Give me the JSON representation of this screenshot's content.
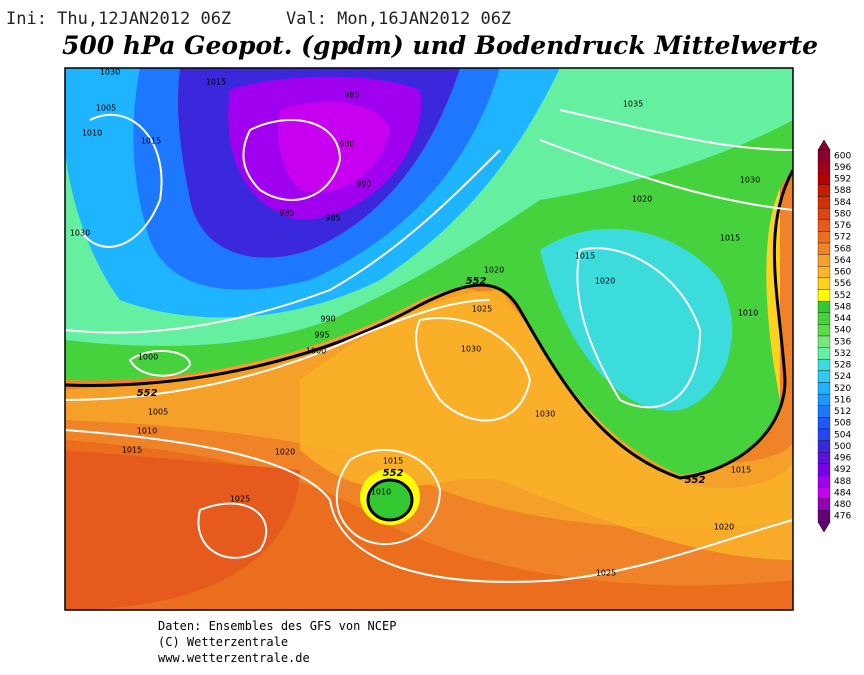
{
  "header": {
    "init": "Ini: Thu,12JAN2012 06Z",
    "valid": "Val: Mon,16JAN2012 06Z",
    "title": "500 hPa Geopot. (gpdm) und Bodendruck Mittelwerte"
  },
  "colorbar": {
    "levels": [
      600,
      596,
      592,
      588,
      584,
      580,
      576,
      572,
      568,
      564,
      560,
      556,
      552,
      548,
      544,
      540,
      536,
      532,
      528,
      524,
      520,
      516,
      512,
      508,
      504,
      500,
      496,
      492,
      488,
      484,
      480,
      476
    ],
    "colors": [
      "#8b0030",
      "#a0001e",
      "#b40000",
      "#c81e00",
      "#d23200",
      "#dc4614",
      "#e65a1e",
      "#eb6e1e",
      "#f08228",
      "#f5a028",
      "#fab428",
      "#ffd21e",
      "#ffff00",
      "#32c832",
      "#46d23c",
      "#5adc46",
      "#78e678",
      "#64f0a0",
      "#3cdcdc",
      "#32c8f0",
      "#1eb4ff",
      "#1e96ff",
      "#1e78ff",
      "#1e5aff",
      "#2846f0",
      "#3c28dc",
      "#5a14dc",
      "#7800e6",
      "#a000f0",
      "#c800f0",
      "#9600b4",
      "#640078"
    ]
  },
  "pressure_labels": [
    "1030",
    "1015",
    "1005",
    "1010",
    "1015",
    "1030",
    "985",
    "980",
    "990",
    "985",
    "985",
    "990",
    "995",
    "1000",
    "1000",
    "1005",
    "1010",
    "1015",
    "1020",
    "1025",
    "1020",
    "1025",
    "1030",
    "1030",
    "1015",
    "1010",
    "1035",
    "1030",
    "1020",
    "1015",
    "1015",
    "1010",
    "1015",
    "1020",
    "1025",
    "1020"
  ],
  "contour_552_labels": [
    "552",
    "552",
    "552",
    "552"
  ],
  "footer": [
    "Daten: Ensembles des GFS von NCEP",
    "(C) Wetterzentrale",
    "www.wetterzentrale.de"
  ]
}
